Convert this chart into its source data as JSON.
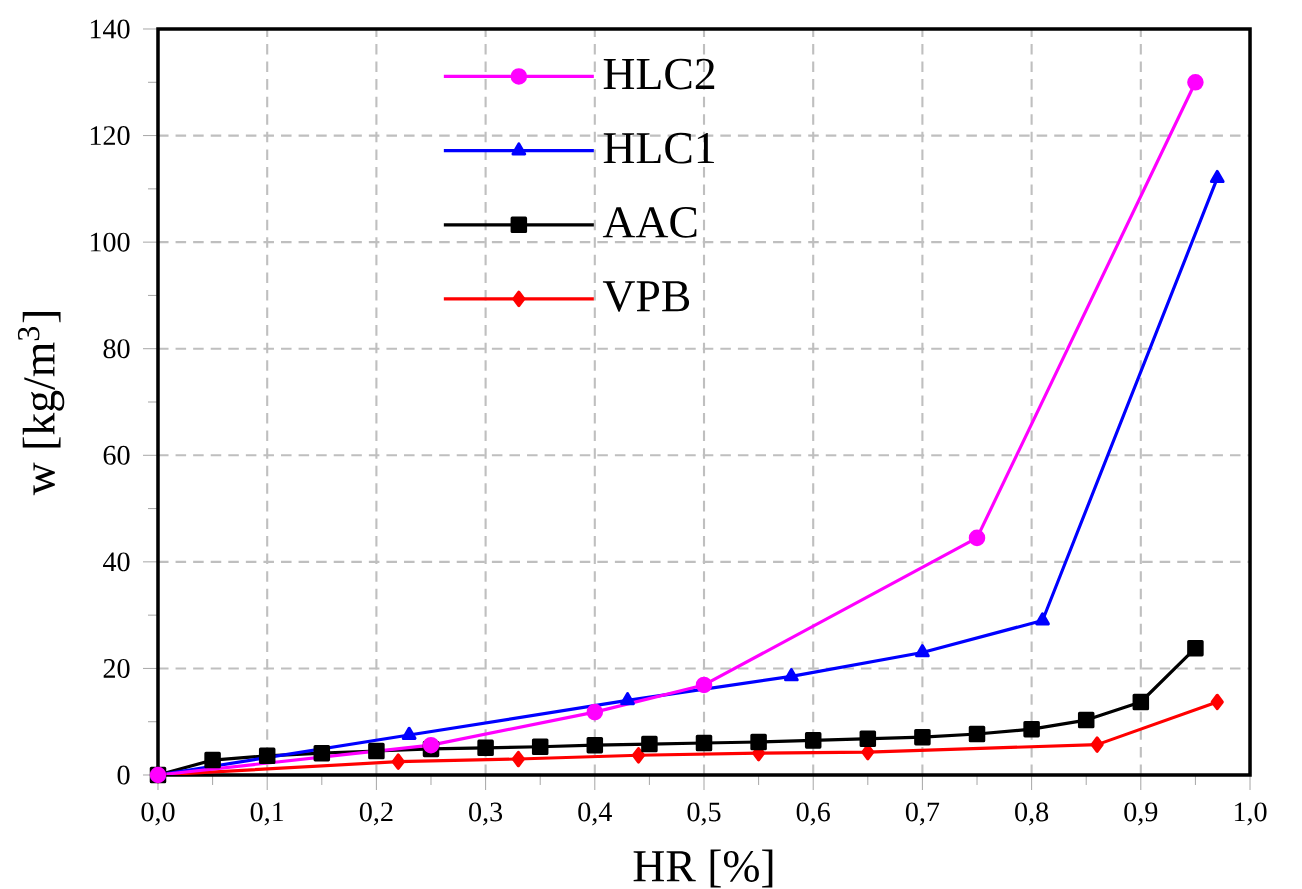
{
  "chart_data": {
    "type": "line",
    "xlabel": "HR [%]",
    "ylabel": "w [kg/m$^{3}$]",
    "xlim": [
      0,
      1
    ],
    "ylim": [
      0,
      140
    ],
    "xticks": [
      {
        "value": 0,
        "label": "0,0"
      },
      {
        "value": 0.1,
        "label": "0,1"
      },
      {
        "value": 0.2,
        "label": "0,2"
      },
      {
        "value": 0.3,
        "label": "0,3"
      },
      {
        "value": 0.4,
        "label": "0,4"
      },
      {
        "value": 0.5,
        "label": "0,5"
      },
      {
        "value": 0.6,
        "label": "0,6"
      },
      {
        "value": 0.7,
        "label": "0,7"
      },
      {
        "value": 0.8,
        "label": "0,8"
      },
      {
        "value": 0.9,
        "label": "0,9"
      },
      {
        "value": 1,
        "label": "1,0"
      }
    ],
    "yticks": [
      0,
      20,
      40,
      60,
      80,
      100,
      120,
      140
    ],
    "grid": true,
    "legend": "top left",
    "line_style": "solid",
    "series": [
      {
        "name": "HLC2",
        "color": "#ff00ff",
        "marker": "circle",
        "x": [
          0,
          0.25,
          0.4,
          0.5,
          0.75,
          0.95
        ],
        "values": [
          0,
          5.6,
          11.8,
          16.9,
          44.5,
          130
        ]
      },
      {
        "name": "HLC1",
        "color": "#0000ff",
        "marker": "triangle",
        "x": [
          0,
          0.23,
          0.43,
          0.58,
          0.7,
          0.81,
          0.97
        ],
        "values": [
          0,
          7.5,
          14,
          18.5,
          23,
          29,
          112
        ]
      },
      {
        "name": "AAC",
        "color": "#000000",
        "marker": "square",
        "x": [
          0,
          0.05,
          0.1,
          0.15,
          0.2,
          0.25,
          0.3,
          0.35,
          0.4,
          0.45,
          0.5,
          0.55,
          0.6,
          0.65,
          0.7,
          0.75,
          0.8,
          0.85,
          0.9,
          0.95
        ],
        "values": [
          0,
          2.8,
          3.6,
          4.1,
          4.5,
          4.9,
          5.1,
          5.3,
          5.6,
          5.8,
          6.0,
          6.2,
          6.5,
          6.8,
          7.1,
          7.7,
          8.6,
          10.3,
          13.7,
          23.8
        ]
      },
      {
        "name": "VPB",
        "color": "#ff0000",
        "marker": "diamond",
        "x": [
          0,
          0.22,
          0.33,
          0.44,
          0.55,
          0.65,
          0.86,
          0.97
        ],
        "values": [
          0,
          2.5,
          3.0,
          3.7,
          4.1,
          4.3,
          5.7,
          13.7
        ]
      }
    ]
  }
}
